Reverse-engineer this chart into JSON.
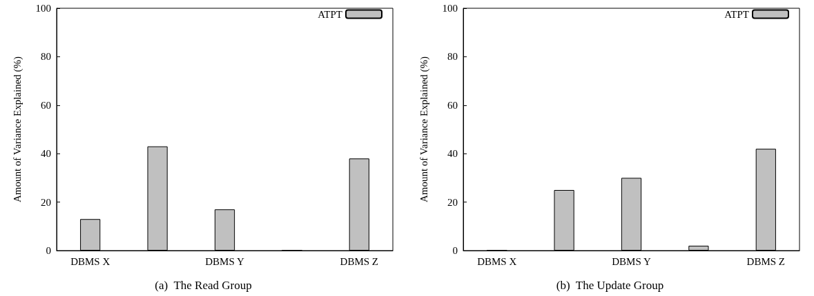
{
  "chart_data": [
    {
      "type": "bar",
      "title": "(a)  The Read Group",
      "ylabel": "Amount of Variance Explained (%)",
      "categories": [
        "DBMS X",
        null,
        "DBMS Y",
        null,
        "DBMS Z"
      ],
      "series": [
        {
          "name": "ATPT",
          "color": "#c0c0c0",
          "values": [
            13,
            43,
            17,
            0,
            38
          ]
        }
      ],
      "ylim": [
        0,
        100
      ],
      "yticks": [
        0,
        20,
        40,
        60,
        80,
        100
      ],
      "grid": false,
      "legend": "top right"
    },
    {
      "type": "bar",
      "title": "(b)  The Update Group",
      "ylabel": "Amount of Variance Explained (%)",
      "categories": [
        "DBMS X",
        null,
        "DBMS Y",
        null,
        "DBMS Z"
      ],
      "series": [
        {
          "name": "ATPT",
          "color": "#c0c0c0",
          "values": [
            0,
            25,
            30,
            2,
            42
          ]
        }
      ],
      "ylim": [
        0,
        100
      ],
      "yticks": [
        0,
        20,
        40,
        60,
        80,
        100
      ],
      "grid": false,
      "legend": "top right"
    }
  ]
}
